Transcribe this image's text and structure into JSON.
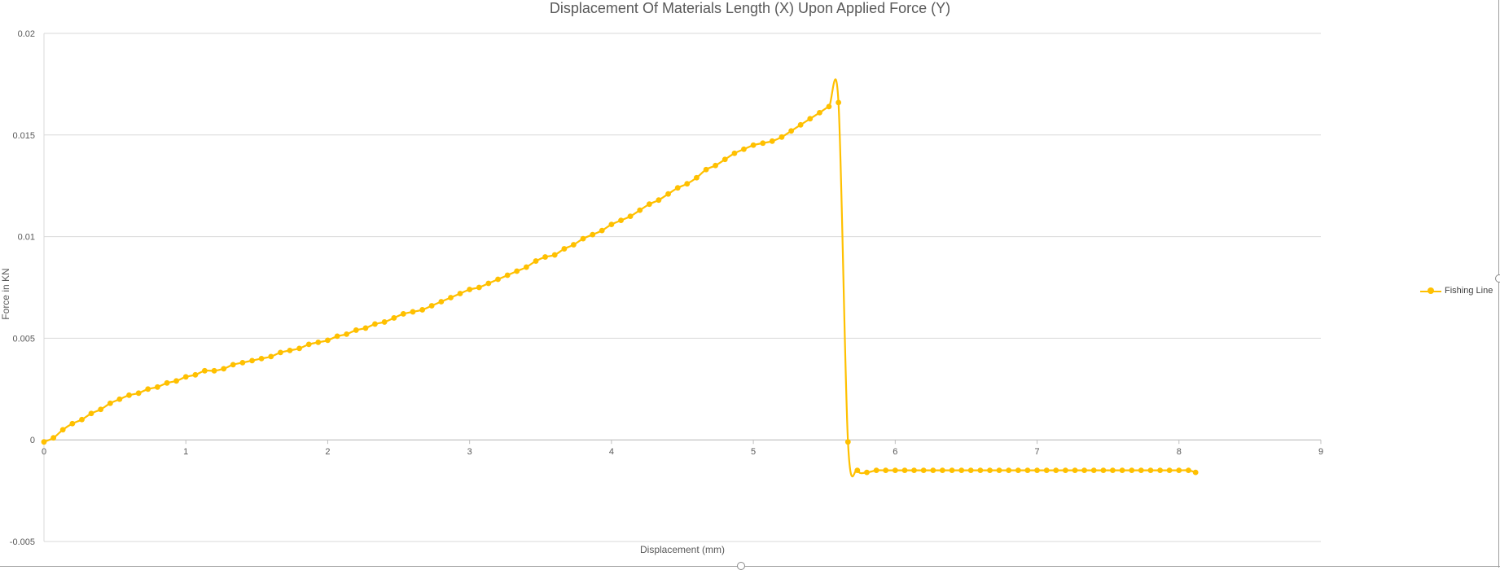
{
  "chart_data": {
    "type": "scatter",
    "title": "Displacement Of Materials Length (X) Upon Applied Force (Y)",
    "xlabel": "Displacement (mm)",
    "ylabel": "Force in KN",
    "xlim": [
      0,
      9
    ],
    "ylim": [
      -0.005,
      0.02
    ],
    "x_ticks": [
      "0",
      "1",
      "2",
      "3",
      "4",
      "5",
      "6",
      "7",
      "8",
      "9"
    ],
    "y_ticks": [
      "0.02",
      "0.015",
      "0.01",
      "0.005",
      "0",
      "-0.005"
    ],
    "grid": true,
    "legend_position": "right",
    "series": [
      {
        "name": "Fishing Line",
        "color": "#FFC000",
        "marker": "circle",
        "x": [
          0,
          0.067,
          0.133,
          0.2,
          0.267,
          0.333,
          0.4,
          0.467,
          0.533,
          0.6,
          0.667,
          0.733,
          0.8,
          0.867,
          0.933,
          1.0,
          1.067,
          1.133,
          1.2,
          1.267,
          1.333,
          1.4,
          1.467,
          1.533,
          1.6,
          1.667,
          1.733,
          1.8,
          1.867,
          1.933,
          2.0,
          2.067,
          2.133,
          2.2,
          2.267,
          2.333,
          2.4,
          2.467,
          2.533,
          2.6,
          2.667,
          2.733,
          2.8,
          2.867,
          2.933,
          3.0,
          3.067,
          3.133,
          3.2,
          3.267,
          3.333,
          3.4,
          3.467,
          3.533,
          3.6,
          3.667,
          3.733,
          3.8,
          3.867,
          3.933,
          4.0,
          4.067,
          4.133,
          4.2,
          4.267,
          4.333,
          4.4,
          4.467,
          4.533,
          4.6,
          4.667,
          4.733,
          4.8,
          4.867,
          4.933,
          5.0,
          5.067,
          5.133,
          5.2,
          5.267,
          5.333,
          5.4,
          5.467,
          5.533,
          5.6,
          5.667,
          5.733,
          5.8,
          5.867,
          5.933,
          6.0,
          6.067,
          6.133,
          6.2,
          6.267,
          6.333,
          6.4,
          6.467,
          6.533,
          6.6,
          6.667,
          6.733,
          6.8,
          6.867,
          6.933,
          7.0,
          7.067,
          7.133,
          7.2,
          7.267,
          7.333,
          7.4,
          7.467,
          7.533,
          7.6,
          7.667,
          7.733,
          7.8,
          7.867,
          7.933,
          8.0,
          8.067,
          8.117
        ],
        "y": [
          -0.0001,
          0.0001,
          0.0005,
          0.0008,
          0.001,
          0.0013,
          0.0015,
          0.0018,
          0.002,
          0.0022,
          0.0023,
          0.0025,
          0.0026,
          0.0028,
          0.0029,
          0.0031,
          0.0032,
          0.0034,
          0.0034,
          0.0035,
          0.0037,
          0.0038,
          0.0039,
          0.004,
          0.0041,
          0.0043,
          0.0044,
          0.0045,
          0.0047,
          0.0048,
          0.0049,
          0.0051,
          0.0052,
          0.0054,
          0.0055,
          0.0057,
          0.0058,
          0.006,
          0.0062,
          0.0063,
          0.0064,
          0.0066,
          0.0068,
          0.007,
          0.0072,
          0.0074,
          0.0075,
          0.0077,
          0.0079,
          0.0081,
          0.0083,
          0.0085,
          0.0088,
          0.009,
          0.0091,
          0.0094,
          0.0096,
          0.0099,
          0.0101,
          0.0103,
          0.0106,
          0.0108,
          0.011,
          0.0113,
          0.0116,
          0.0118,
          0.0121,
          0.0124,
          0.0126,
          0.0129,
          0.0133,
          0.0135,
          0.0138,
          0.0141,
          0.0143,
          0.0145,
          0.0146,
          0.0147,
          0.0149,
          0.0152,
          0.0155,
          0.0158,
          0.0161,
          0.0164,
          0.0166,
          -0.0001,
          -0.0015,
          -0.0016,
          -0.0015,
          -0.0015,
          -0.0015,
          -0.0015,
          -0.0015,
          -0.0015,
          -0.0015,
          -0.0015,
          -0.0015,
          -0.0015,
          -0.0015,
          -0.0015,
          -0.0015,
          -0.0015,
          -0.0015,
          -0.0015,
          -0.0015,
          -0.0015,
          -0.0015,
          -0.0015,
          -0.0015,
          -0.0015,
          -0.0015,
          -0.0015,
          -0.0015,
          -0.0015,
          -0.0015,
          -0.0015,
          -0.0015,
          -0.0015,
          -0.0015,
          -0.0015,
          -0.0015,
          -0.0015,
          -0.0016
        ]
      }
    ]
  }
}
